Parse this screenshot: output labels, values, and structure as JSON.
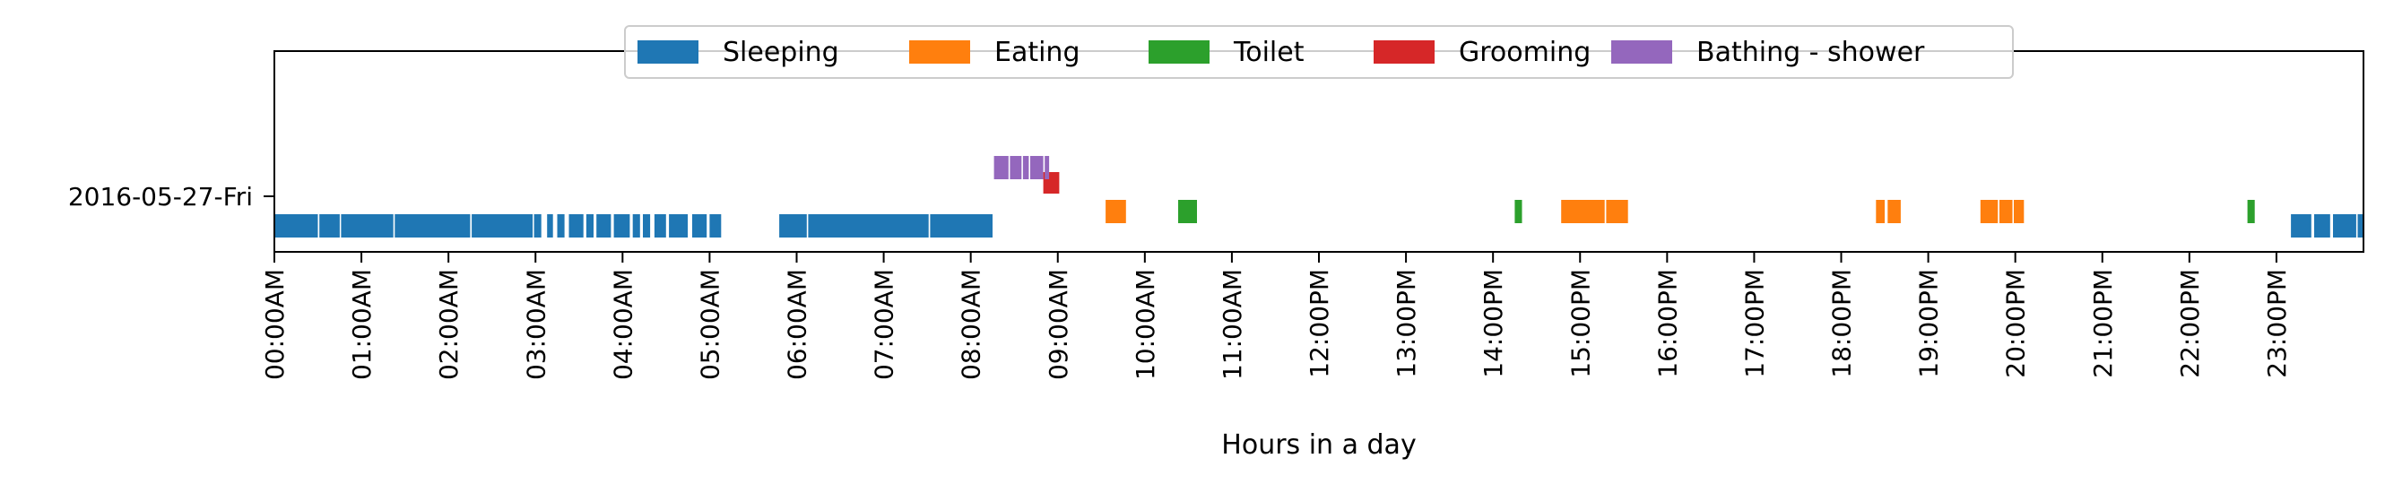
{
  "chart_data": {
    "type": "timeline",
    "xlabel": "Hours in a day",
    "ylabel": "",
    "xlim": [
      0,
      24
    ],
    "row_label": "2016-05-27-Fri",
    "x_ticks": [
      "00:00AM",
      "01:00AM",
      "02:00AM",
      "03:00AM",
      "04:00AM",
      "05:00AM",
      "06:00AM",
      "07:00AM",
      "08:00AM",
      "09:00AM",
      "10:00AM",
      "11:00AM",
      "12:00PM",
      "13:00PM",
      "14:00PM",
      "15:00PM",
      "16:00PM",
      "17:00PM",
      "18:00PM",
      "19:00PM",
      "20:00PM",
      "21:00PM",
      "22:00PM",
      "23:00PM"
    ],
    "legend_position": "top-center",
    "series": [
      {
        "name": "Sleeping",
        "color": "#1f77b4",
        "lane": "low",
        "intervals": [
          [
            "00:00",
            "00:30"
          ],
          [
            "00:31",
            "00:45"
          ],
          [
            "00:46",
            "01:22"
          ],
          [
            "01:23",
            "02:15"
          ],
          [
            "02:16",
            "02:58"
          ],
          [
            "02:59",
            "03:04"
          ],
          [
            "03:08",
            "03:12"
          ],
          [
            "03:15",
            "03:20"
          ],
          [
            "03:23",
            "03:33"
          ],
          [
            "03:35",
            "03:40"
          ],
          [
            "03:42",
            "03:52"
          ],
          [
            "03:54",
            "04:05"
          ],
          [
            "04:07",
            "04:12"
          ],
          [
            "04:14",
            "04:19"
          ],
          [
            "04:22",
            "04:30"
          ],
          [
            "04:32",
            "04:45"
          ],
          [
            "04:48",
            "04:58"
          ],
          [
            "05:00",
            "05:08"
          ],
          [
            "05:48",
            "06:07"
          ],
          [
            "06:08",
            "07:31"
          ],
          [
            "07:32",
            "08:15"
          ],
          [
            "23:10",
            "23:24"
          ],
          [
            "23:26",
            "23:37"
          ],
          [
            "23:39",
            "23:55"
          ],
          [
            "23:56",
            "24:00"
          ]
        ]
      },
      {
        "name": "Eating",
        "color": "#ff7f0e",
        "lane": "mid",
        "intervals": [
          [
            "09:33",
            "09:47"
          ],
          [
            "14:47",
            "15:17"
          ],
          [
            "15:18",
            "15:33"
          ],
          [
            "18:24",
            "18:30"
          ],
          [
            "18:32",
            "18:41"
          ],
          [
            "19:36",
            "19:48"
          ],
          [
            "19:49",
            "19:58"
          ],
          [
            "19:59",
            "20:06"
          ]
        ]
      },
      {
        "name": "Toilet",
        "color": "#2ca02c",
        "lane": "mid",
        "intervals": [
          [
            "10:23",
            "10:36"
          ],
          [
            "14:15",
            "14:20"
          ],
          [
            "22:40",
            "22:45"
          ]
        ]
      },
      {
        "name": "Grooming",
        "color": "#d62728",
        "lane": "upper",
        "intervals": [
          [
            "08:50",
            "09:01"
          ]
        ]
      },
      {
        "name": "Bathing - shower",
        "color": "#9467bd",
        "lane": "top",
        "intervals": [
          [
            "08:16",
            "08:26"
          ],
          [
            "08:27",
            "08:35"
          ],
          [
            "08:36",
            "08:40"
          ],
          [
            "08:41",
            "08:50"
          ],
          [
            "08:51",
            "08:54"
          ]
        ]
      }
    ]
  }
}
